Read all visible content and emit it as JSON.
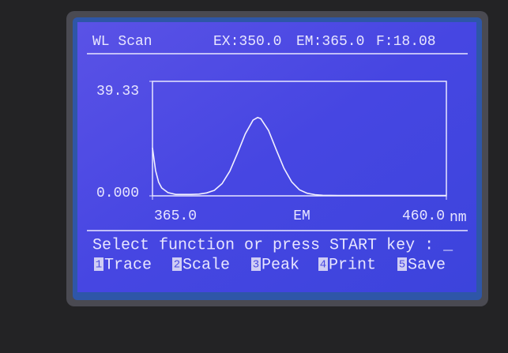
{
  "header": {
    "mode": "WL Scan",
    "ex": "EX:350.0",
    "em": "EM:365.0",
    "f": "F:18.08"
  },
  "chart_data": {
    "type": "line",
    "x_label": "EM",
    "x_unit": "nm",
    "x": [
      365,
      366,
      367,
      368,
      370,
      372.5,
      375,
      377.5,
      380,
      382.5,
      385,
      387.5,
      390,
      392.5,
      395,
      397.5,
      399,
      400,
      402.5,
      405,
      407.5,
      410,
      412.5,
      415,
      417.5,
      420,
      425,
      430,
      440,
      450,
      460
    ],
    "values": [
      16.5,
      8.7,
      4.7,
      2.7,
      1.1,
      0.5,
      0.5,
      0.5,
      0.6,
      1.0,
      1.9,
      4.2,
      8.5,
      14.7,
      21.3,
      26.0,
      26.9,
      26.5,
      22.5,
      15.9,
      9.5,
      4.8,
      2.1,
      0.9,
      0.4,
      0.2,
      0.1,
      0.1,
      0.1,
      0.1,
      0.1
    ],
    "color": "#f2f0ff",
    "xlim": [
      365,
      460
    ],
    "xticks": [
      {
        "value": 365,
        "label": "365.0"
      },
      {
        "value": 460,
        "label": "460.0"
      }
    ],
    "ylim": [
      0,
      39.33
    ],
    "yticks": [
      {
        "value": 0,
        "label": "0.000"
      },
      39.33
    ]
  },
  "prompt": "Select function or press START key : _",
  "menu": [
    {
      "key": "1",
      "label": "Trace"
    },
    {
      "key": "2",
      "label": "Scale"
    },
    {
      "key": "3",
      "label": "Peak"
    },
    {
      "key": "4",
      "label": "Print"
    },
    {
      "key": "5",
      "label": "Save"
    }
  ]
}
